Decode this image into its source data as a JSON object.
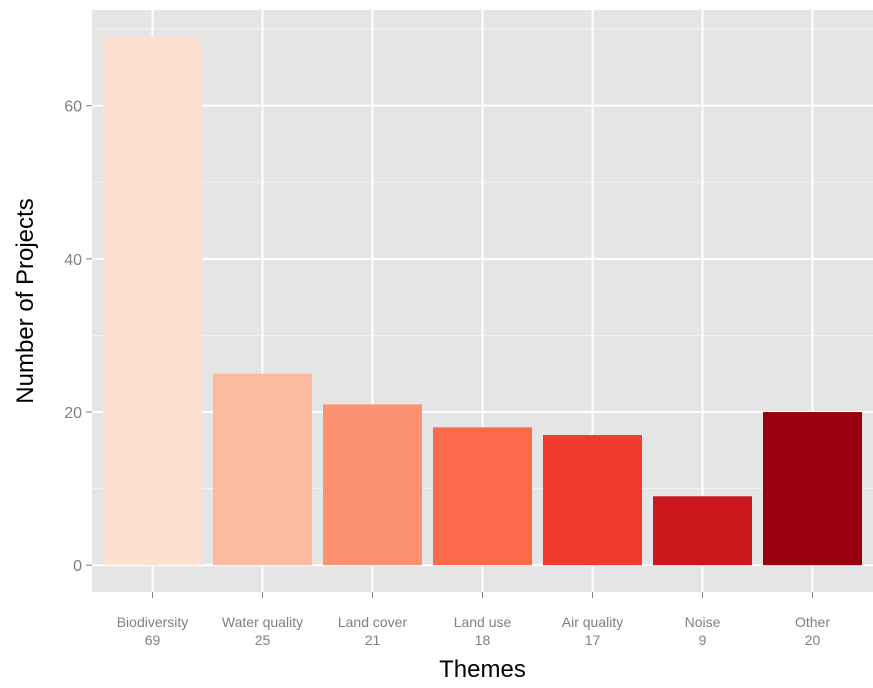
{
  "chart_data": {
    "type": "bar",
    "xlabel": "Themes",
    "ylabel": "Number of Projects",
    "ylim": [
      -3.5,
      72.5
    ],
    "yticks": [
      0,
      20,
      40,
      60
    ],
    "grid": true,
    "categories": [
      {
        "label": "Biodiversity",
        "count": "69"
      },
      {
        "label": "Water quality",
        "count": "25"
      },
      {
        "label": "Land cover",
        "count": "21"
      },
      {
        "label": "Land use",
        "count": "18"
      },
      {
        "label": "Air quality",
        "count": "17"
      },
      {
        "label": "Noise",
        "count": "9"
      },
      {
        "label": "Other",
        "count": "20"
      }
    ],
    "values": [
      69,
      25,
      21,
      18,
      17,
      9,
      20
    ],
    "colors": [
      "#fee0d2",
      "#fcbba1",
      "#fc9272",
      "#fb6a4a",
      "#ef3b2c",
      "#cb181d",
      "#99000d"
    ]
  },
  "style": {
    "panel_background": "#e5e5e5",
    "grid_color": "#ffffff"
  }
}
